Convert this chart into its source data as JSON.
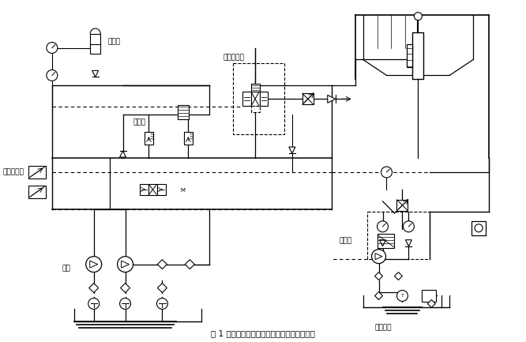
{
  "title": "图 1 软管总成试验装置的参考液压回路原理图",
  "bg_color": "#ffffff",
  "lc": "#000000",
  "figsize": [
    6.66,
    4.33
  ],
  "dpi": 100,
  "labels": {
    "accumulator": "蓄能器",
    "relief_valve": "溢流阀",
    "remote_pressure": "远程调压阀",
    "main_pump": "主泵",
    "electro_valve": "电液换向阀",
    "high_temp_pump": "高温泵",
    "high_temp_tank": "高温油箱"
  }
}
